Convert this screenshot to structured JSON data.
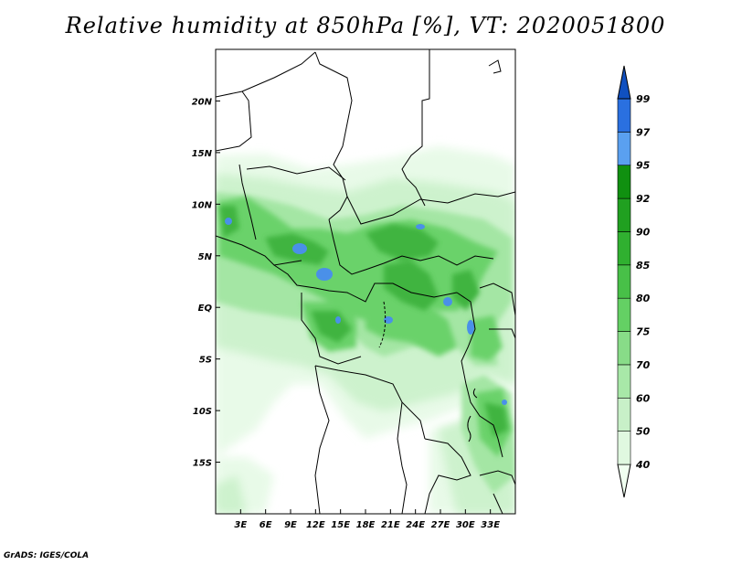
{
  "title": "Relative humidity at 850hPa [%], VT: 2020051800",
  "credit": "GrADS: IGES/COLA",
  "map": {
    "lon_range": [
      0,
      36
    ],
    "lat_range": [
      -20,
      25
    ],
    "lon_ticks": [
      "3E",
      "6E",
      "9E",
      "12E",
      "15E",
      "18E",
      "21E",
      "24E",
      "27E",
      "30E",
      "33E"
    ],
    "lat_ticks": [
      "20N",
      "15N",
      "10N",
      "5N",
      "EQ",
      "5S",
      "10S",
      "15S"
    ]
  },
  "colorbar": {
    "levels": [
      "40",
      "50",
      "60",
      "70",
      "75",
      "80",
      "85",
      "90",
      "92",
      "95",
      "97",
      "99"
    ],
    "colors": [
      "#f0fff0",
      "#e0f8e0",
      "#c8f0c8",
      "#a8e8a8",
      "#88dc88",
      "#64d064",
      "#48c048",
      "#30b030",
      "#20a020",
      "#109010",
      "#5aa0f0",
      "#2a70e0",
      "#1050c0"
    ]
  }
}
